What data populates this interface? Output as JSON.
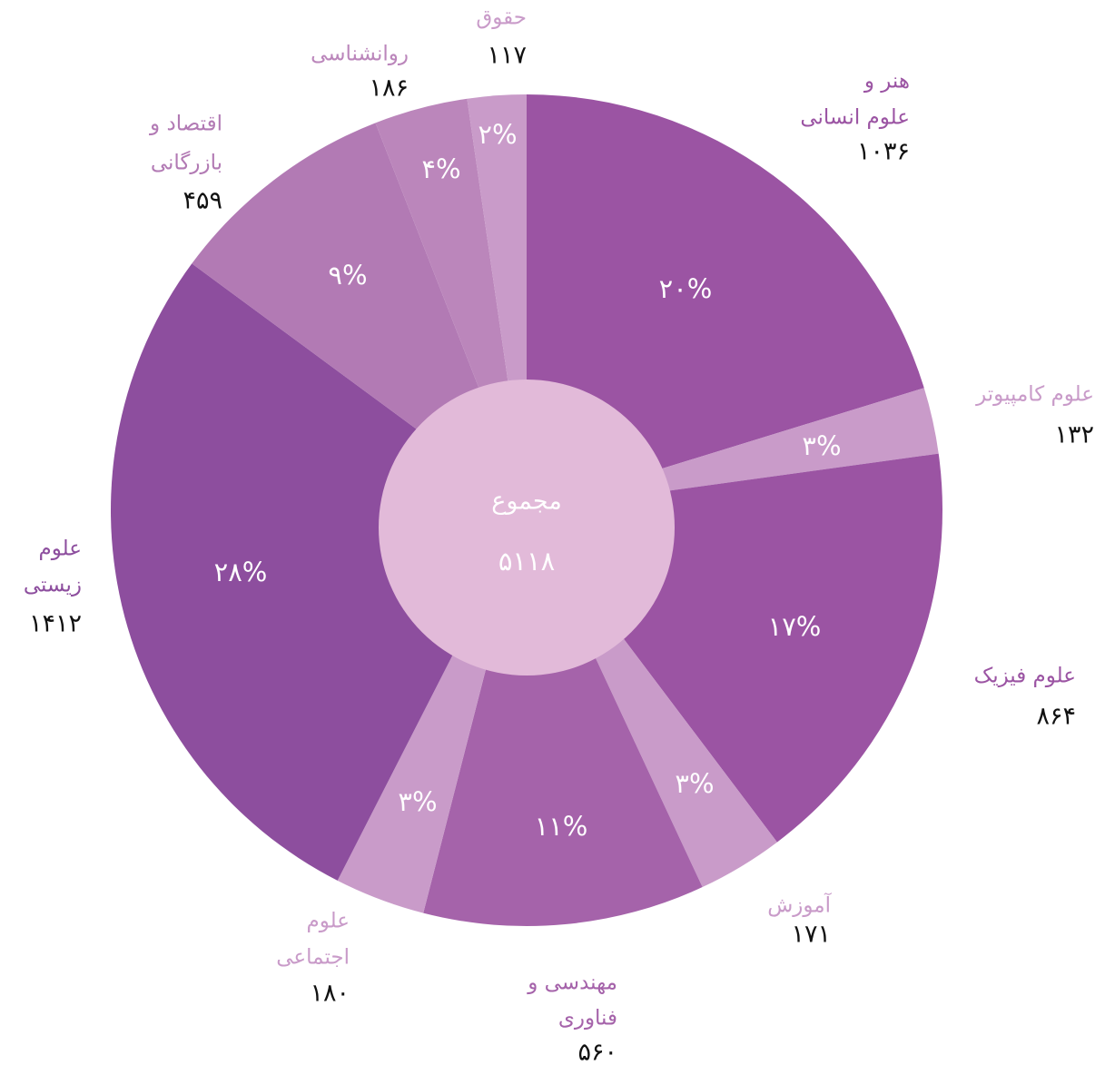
{
  "chart_data": {
    "type": "pie",
    "categories": [
      [
        "هنر و",
        "علوم انسانی"
      ],
      [
        "علوم کامپیوتر"
      ],
      [
        "علوم فیزیک"
      ],
      [
        "آموزش"
      ],
      [
        "مهندسی و",
        "فناوری"
      ],
      [
        "علوم",
        "اجتماعی"
      ],
      [
        "علوم",
        "زیستی"
      ],
      [
        "اقتصاد و",
        "بازرگانی"
      ],
      [
        "روانشناسی"
      ],
      [
        "حقوق"
      ]
    ],
    "values": [
      1036,
      132,
      864,
      171,
      560,
      180,
      1412,
      459,
      186,
      117
    ],
    "value_labels": [
      "۱۰۳۶",
      "۱۳۲",
      "۸۶۴",
      "۱۷۱",
      "۵۶۰",
      "۱۸۰",
      "۱۴۱۲",
      "۴۵۹",
      "۱۸۶",
      "۱۱۷"
    ],
    "percent_labels": [
      "۲۰%",
      "۳%",
      "۱۷%",
      "۳%",
      "۱۱%",
      "۳%",
      "۲۸%",
      "۹%",
      "۴%",
      "۲%"
    ],
    "colors": [
      "#9b54a3",
      "#c99bc9",
      "#9b54a3",
      "#c99bc9",
      "#a563aa",
      "#c99bc9",
      "#8d4e9e",
      "#b27ab4",
      "#bb86bb",
      "#c99bc9"
    ],
    "total": {
      "label": "مجموع",
      "value": 5118,
      "value_label": "۵۱۱۸"
    }
  }
}
